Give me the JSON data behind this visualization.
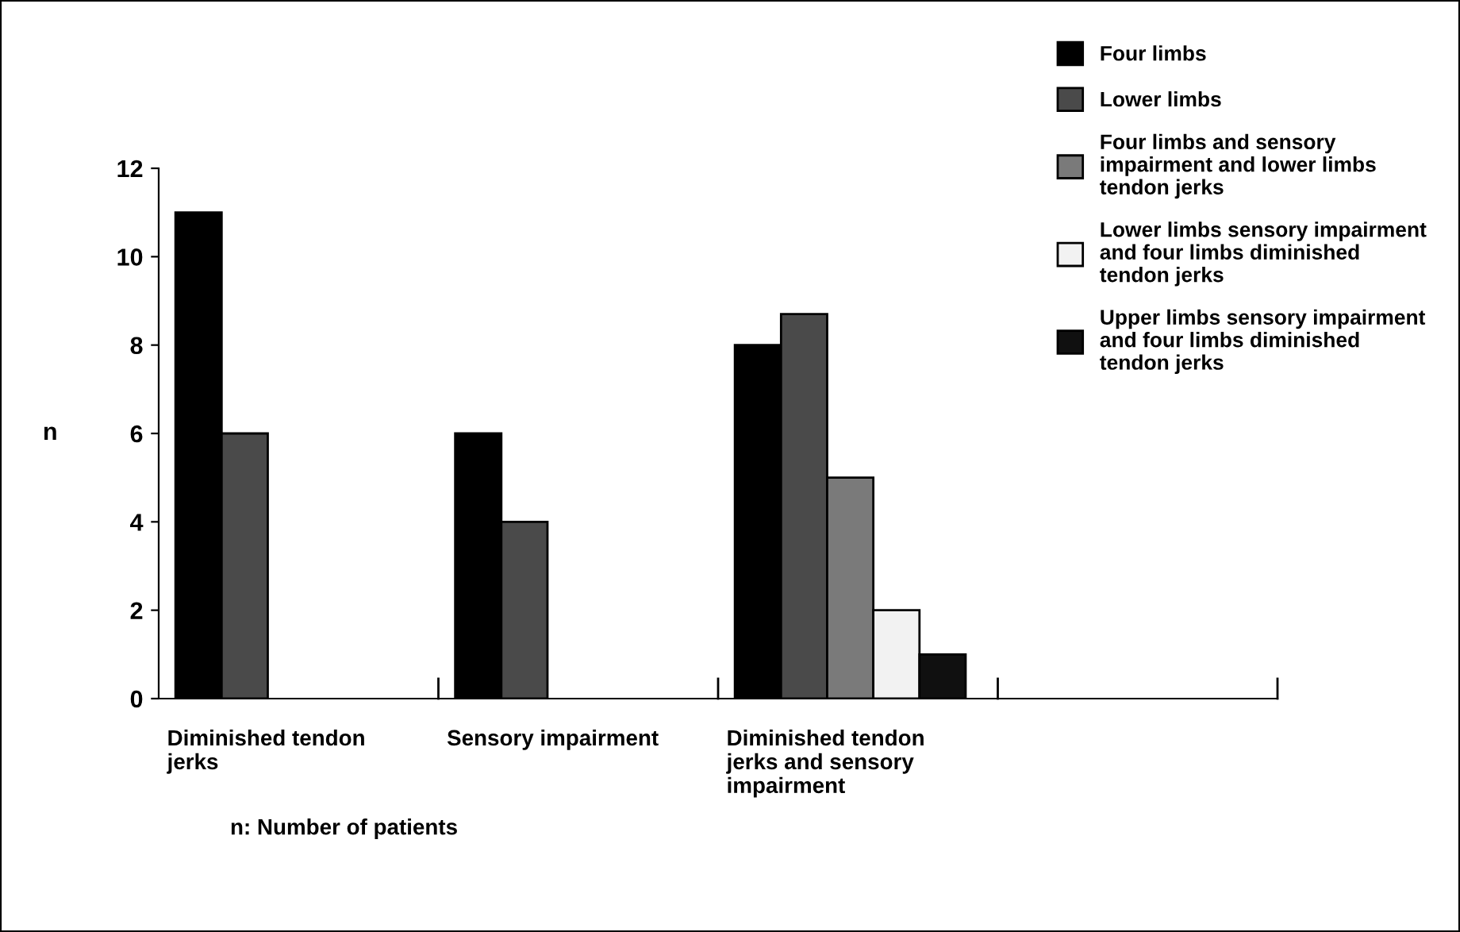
{
  "chart_data": {
    "type": "bar",
    "categories": [
      "Diminished tendon\njerks",
      "Sensory impairment",
      "Diminished tendon\njerks and sensory\nimpairment",
      null
    ],
    "series": [
      {
        "name": "Four limbs",
        "color": "#000000",
        "values": [
          11,
          6,
          8,
          null
        ]
      },
      {
        "name": "Lower limbs",
        "color": "#4a4a4a",
        "values": [
          6,
          4,
          8.7,
          null
        ]
      },
      {
        "name": "Four limbs and sensory\nimpairment and lower limbs\ntendon jerks",
        "color": "#7a7a7a",
        "values": [
          null,
          null,
          5,
          null
        ]
      },
      {
        "name": "Lower limbs sensory impairment\nand four limbs diminished\ntendon jerks",
        "color": "#f2f2f2",
        "values": [
          null,
          null,
          2,
          null
        ]
      },
      {
        "name": "Upper limbs sensory impairment\nand four limbs diminished\ntendon jerks",
        "color": "#101010",
        "values": [
          null,
          null,
          1,
          null
        ]
      }
    ],
    "ylabel": "n",
    "ylim": [
      0,
      12
    ],
    "yticks": [
      0,
      2,
      4,
      6,
      8,
      10,
      12
    ],
    "legend": "top right",
    "annotations": [
      "n: Number of patients"
    ]
  }
}
